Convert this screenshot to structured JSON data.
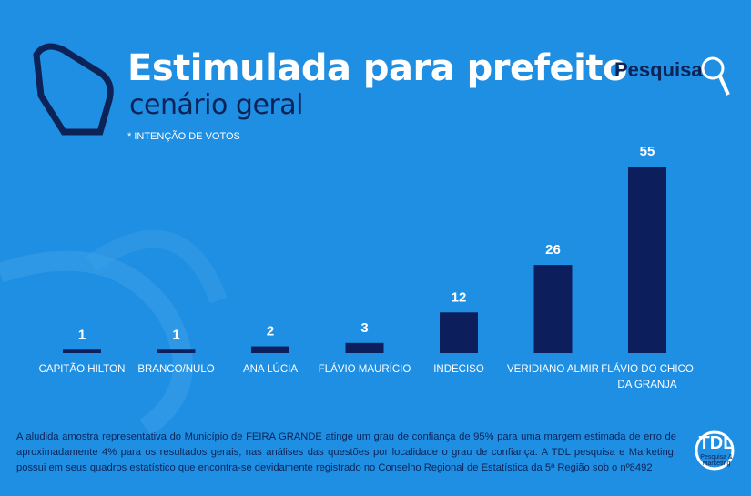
{
  "chart_data": {
    "type": "bar",
    "title": "Estimulada para prefeito",
    "subtitle": "cenário geral",
    "note": "* INTENÇÃO DE VOTOS",
    "brand": "Pesquisa",
    "categories": [
      "CAPITÃO HILTON",
      "BRANCO/NULO",
      "ANA LÚCIA",
      "FLÁVIO MAURÍCIO",
      "INDECISO",
      "VERIDIANO ALMIR",
      "FLÁVIO DO CHICO DA GRANJA"
    ],
    "values": [
      1,
      1,
      2,
      3,
      12,
      26,
      55
    ],
    "color": "#0c1f5c",
    "footer": "A aludida amostra representativa do Município de FEIRA GRANDE atinge um grau de confiança de 95% para uma margem estimada de erro de aproximadamente 4% para os resultados gerais, nas análises das questões por localidade o grau de confiança.  A TDL pesquisa e Marketing, possui em seus quadros estatístico que encontra-se devidamente registrado no Conselho Regional de Estatística da 5ª Região sob o nº8492",
    "logo": "TDL",
    "logo_caption": "Pesquisa & Marketing"
  }
}
